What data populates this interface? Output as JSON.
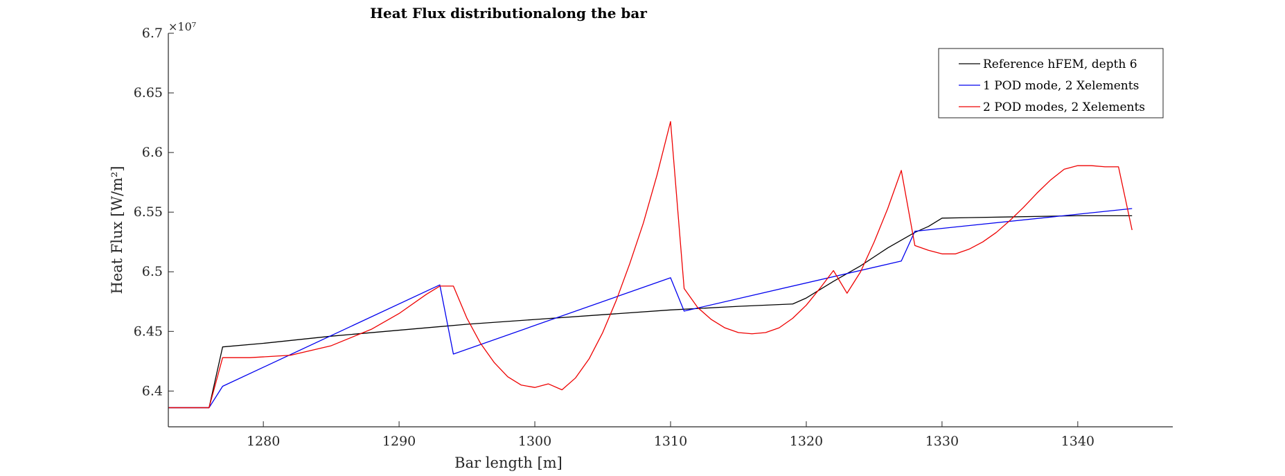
{
  "chart_data": {
    "type": "line",
    "title": "Heat Flux distributionalong the bar",
    "xlabel": "Bar length [m]",
    "ylabel": "Heat Flux [W/m²]",
    "y_multiplier": "×10⁷",
    "xlim": [
      1273,
      1347
    ],
    "ylim": [
      6.37,
      6.7
    ],
    "x_ticks": [
      "1280",
      "1290",
      "1300",
      "1310",
      "1320",
      "1330",
      "1340"
    ],
    "y_ticks": [
      "6.4",
      "6.45",
      "6.5",
      "6.55",
      "6.6",
      "6.65",
      "6.7"
    ],
    "grid": false,
    "legend_position": "top-right",
    "series": [
      {
        "name": "Reference hFEM, depth 6",
        "color": "#000000",
        "x": [
          1273,
          1276,
          1277,
          1280,
          1285,
          1290,
          1295,
          1300,
          1305,
          1310,
          1315,
          1319,
          1320,
          1322,
          1324,
          1326,
          1328,
          1329,
          1330,
          1335,
          1340,
          1344
        ],
        "y": [
          6.386,
          6.386,
          6.437,
          6.44,
          6.446,
          6.451,
          6.456,
          6.46,
          6.464,
          6.468,
          6.471,
          6.473,
          6.478,
          6.492,
          6.505,
          6.52,
          6.533,
          6.538,
          6.545,
          6.546,
          6.547,
          6.547
        ]
      },
      {
        "name": "1 POD mode, 2 Xelements",
        "color": "#0000ee",
        "x": [
          1273,
          1276,
          1277,
          1293,
          1294,
          1310,
          1311,
          1327,
          1328,
          1344
        ],
        "y": [
          6.386,
          6.386,
          6.404,
          6.489,
          6.431,
          6.495,
          6.467,
          6.509,
          6.534,
          6.553
        ]
      },
      {
        "name": "2 POD modes, 2 Xelements",
        "color": "#ee0000",
        "x": [
          1273,
          1276,
          1277,
          1279,
          1282,
          1285,
          1288,
          1290,
          1292,
          1293,
          1294,
          1295,
          1296,
          1297,
          1298,
          1299,
          1300,
          1301,
          1302,
          1303,
          1304,
          1305,
          1306,
          1307,
          1308,
          1309,
          1310,
          1311,
          1312,
          1313,
          1314,
          1315,
          1316,
          1317,
          1318,
          1319,
          1320,
          1321,
          1322,
          1323,
          1324,
          1325,
          1326,
          1327,
          1328,
          1329,
          1330,
          1331,
          1332,
          1333,
          1334,
          1335,
          1336,
          1337,
          1338,
          1339,
          1340,
          1341,
          1342,
          1343,
          1344
        ],
        "y": [
          6.386,
          6.386,
          6.428,
          6.428,
          6.43,
          6.438,
          6.452,
          6.465,
          6.481,
          6.488,
          6.488,
          6.461,
          6.44,
          6.424,
          6.412,
          6.405,
          6.403,
          6.406,
          6.401,
          6.411,
          6.427,
          6.449,
          6.476,
          6.507,
          6.541,
          6.581,
          6.626,
          6.486,
          6.47,
          6.46,
          6.453,
          6.449,
          6.448,
          6.449,
          6.453,
          6.461,
          6.472,
          6.486,
          6.501,
          6.482,
          6.5,
          6.525,
          6.553,
          6.585,
          6.522,
          6.518,
          6.515,
          6.515,
          6.519,
          6.525,
          6.533,
          6.543,
          6.554,
          6.566,
          6.577,
          6.586,
          6.589,
          6.589,
          6.588,
          6.588,
          6.535
        ]
      }
    ]
  }
}
